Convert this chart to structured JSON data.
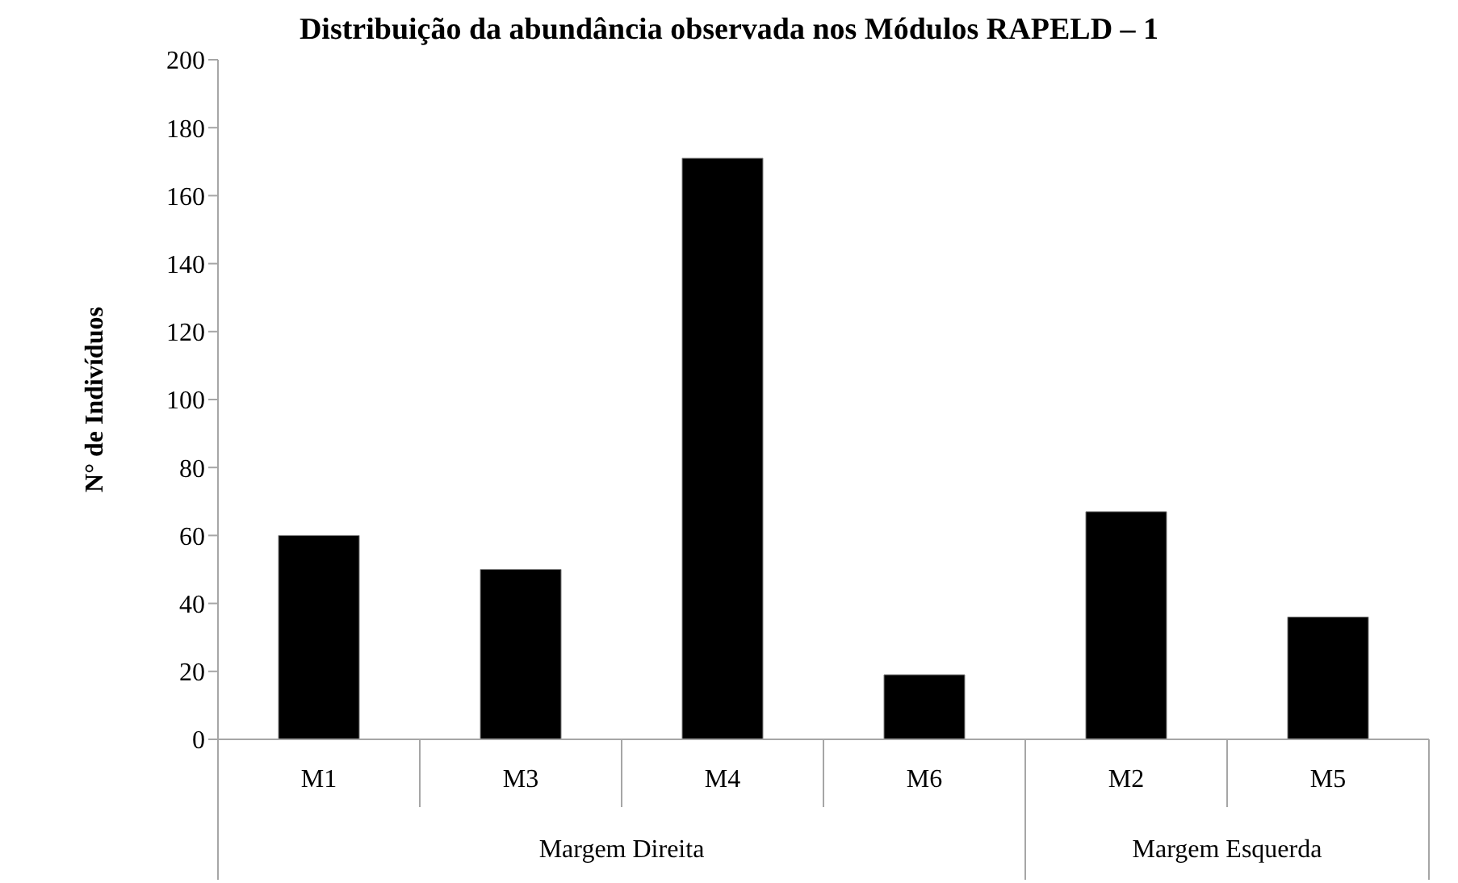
{
  "chart_data": {
    "type": "bar",
    "title": "Distribuição da abundância observada nos Módulos RAPELD – 1",
    "ylabel": "N° de Indivíduos",
    "categories": [
      "M1",
      "M3",
      "M4",
      "M6",
      "M2",
      "M5"
    ],
    "values": [
      60,
      50,
      171,
      19,
      67,
      36
    ],
    "color": "#000000",
    "ylim": [
      0,
      200
    ],
    "yticks": [
      0,
      20,
      40,
      60,
      80,
      100,
      120,
      140,
      160,
      180,
      200
    ],
    "annotations": [
      "Margem Direita",
      "Margem Esquerda"
    ]
  }
}
